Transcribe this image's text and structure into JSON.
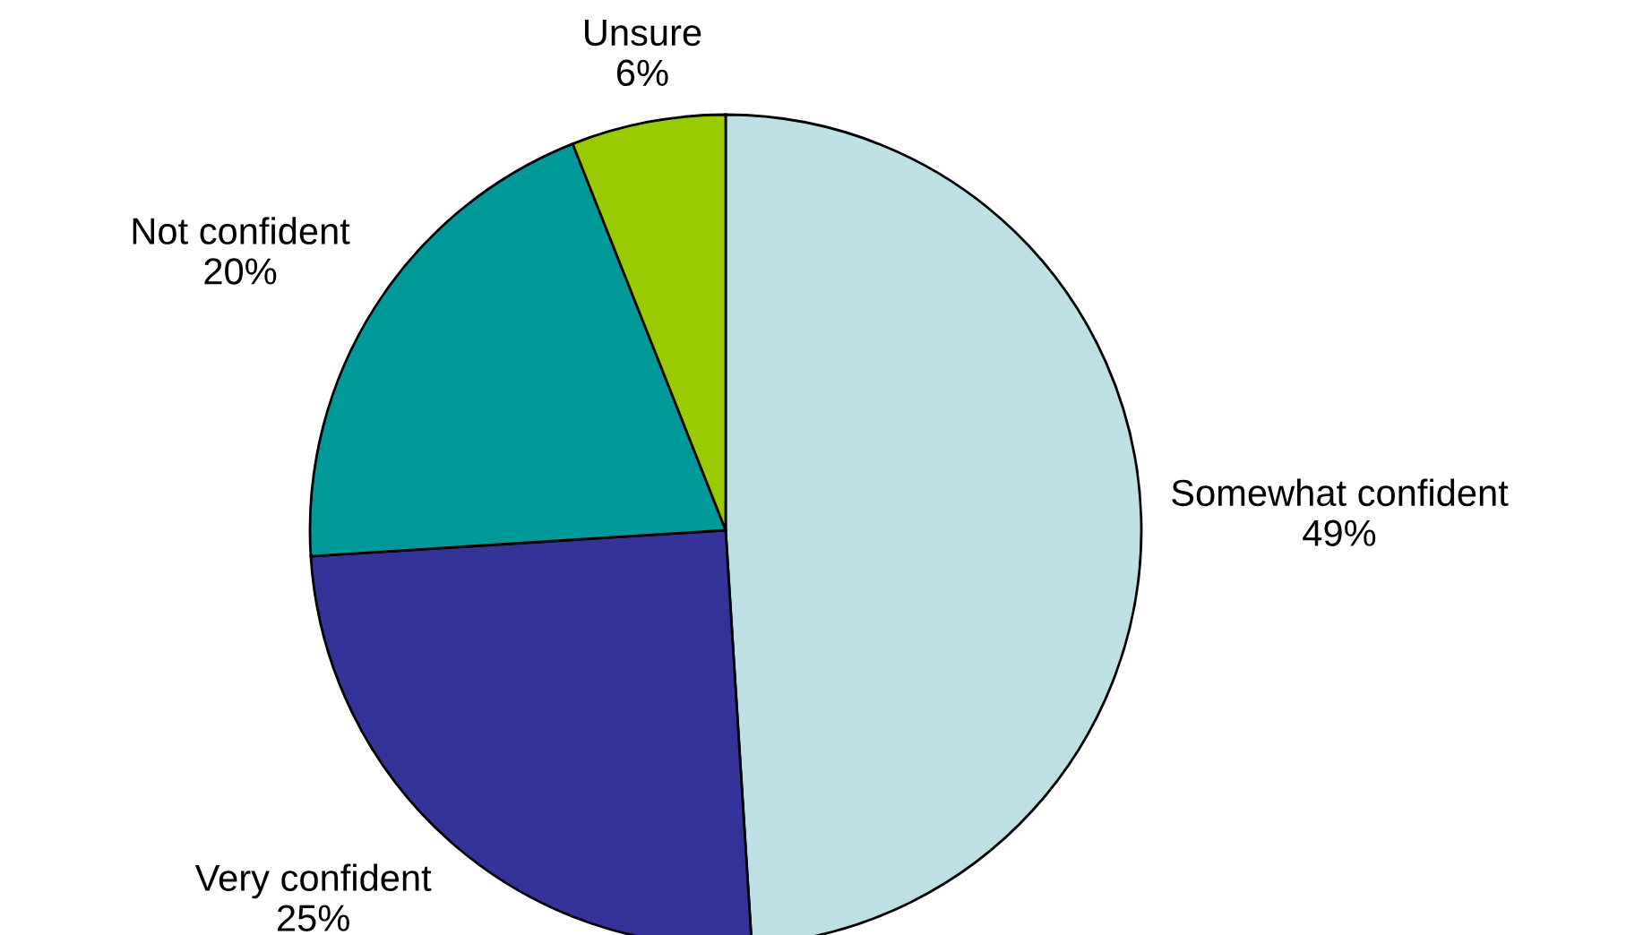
{
  "chart_data": {
    "type": "pie",
    "categories": [
      "Somewhat confident",
      "Very confident",
      "Not confident",
      "Unsure"
    ],
    "values": [
      49,
      25,
      20,
      6
    ],
    "colors": [
      "#bce0e3",
      "#333399",
      "#009999",
      "#99cc00"
    ],
    "value_labels": [
      "49%",
      "25%",
      "20%",
      "6%"
    ]
  }
}
